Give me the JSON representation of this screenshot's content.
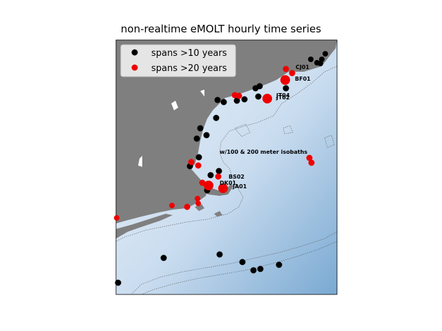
{
  "title": "non-realtime eMOLT hourly time series",
  "colors": {
    "land": "#7f7f7f",
    "ocean_light": "#e3edf7",
    "ocean_dark": "#7aa9d2",
    "ten_year": "#000000",
    "twenty_year": "#ee0000",
    "isobath": "#555555"
  },
  "legend": {
    "placement": "top-left",
    "items": [
      {
        "label": "spans >10 years",
        "color": "#000000"
      },
      {
        "label": "spans >20 years",
        "color": "#ee0000"
      }
    ]
  },
  "annotations": {
    "isobaths_note": "w/100 & 200 meter isobaths",
    "sites": [
      {
        "name": "CJ01"
      },
      {
        "name": "BF01"
      },
      {
        "name": "JT04"
      },
      {
        "name": "JT02"
      },
      {
        "name": "BS02"
      },
      {
        "name": "DK01"
      },
      {
        "name": "JA01"
      }
    ]
  }
}
